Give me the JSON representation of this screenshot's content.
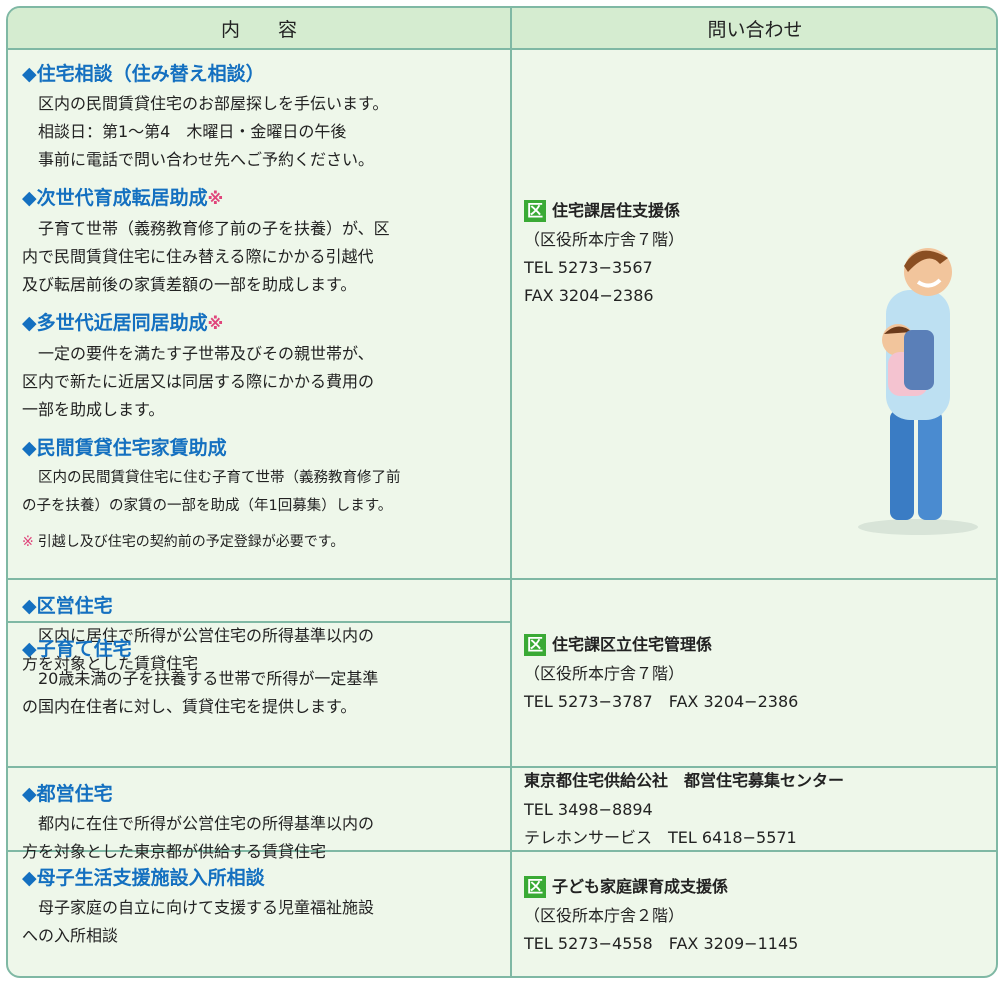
{
  "header": {
    "col1": "内　　容",
    "col2": "問い合わせ"
  },
  "rows": [
    {
      "cells": [
        {
          "items": [
            {
              "title": "◆住宅相談（住み替え相談）",
              "lines": [
                "区内の民間賃貸住宅のお部屋探しを手伝います。",
                "相談日：第1〜第4　木曜日・金曜日の午後",
                "事前に電話で問い合わせ先へご予約ください。"
              ]
            },
            {
              "title": "◆次世代育成転居助成",
              "mark": "※",
              "lines": [
                "子育て世帯（義務教育修了前の子を扶養）が、区",
                "内で民間賃貸住宅に住み替える際にかかる引越代",
                "及び転居前後の家賃差額の一部を助成します。"
              ]
            },
            {
              "title": "◆多世代近居同居助成",
              "mark": "※",
              "lines": [
                "一定の要件を満たす子世帯及びその親世帯が、",
                "区内で新たに近居又は同居する際にかかる費用の",
                "一部を助成します。"
              ]
            },
            {
              "title": "◆民間賃貸住宅家賃助成",
              "lines": [
                "区内の民間賃貸住宅に住む子育て世帯（義務教育修了前",
                "の子を扶養）の家賃の一部を助成（年1回募集）します。"
              ]
            }
          ],
          "note": {
            "mark": "※",
            "text": "引越し及び住宅の契約前の予定登録が必要です。"
          }
        }
      ],
      "contact": {
        "badge": "区",
        "name": "住宅課居住支援係",
        "lines": [
          "（区役所本庁舎７階）",
          "TEL 5273−3567",
          "FAX 3204−2386"
        ]
      }
    },
    {
      "cells": [
        {
          "items": [
            {
              "title": "◆区営住宅",
              "lines": [
                "区内に居住で所得が公営住宅の所得基準以内の",
                "方を対象とした賃貸住宅"
              ]
            }
          ]
        },
        {
          "items": [
            {
              "title": "◆子育て住宅",
              "lines": [
                "20歳未満の子を扶養する世帯で所得が一定基準",
                "の国内在住者に対し、賃貸住宅を提供します。"
              ]
            }
          ]
        }
      ],
      "contact": {
        "badge": "区",
        "name": "住宅課区立住宅管理係",
        "lines": [
          "（区役所本庁舎７階）",
          "TEL 5273−3787　FAX 3204−2386"
        ]
      }
    },
    {
      "cells": [
        {
          "items": [
            {
              "title": "◆都営住宅",
              "lines": [
                "都内に在住で所得が公営住宅の所得基準以内の",
                "方を対象とした東京都が供給する賃貸住宅"
              ]
            }
          ]
        }
      ],
      "contact": {
        "name": "東京都住宅供給公社　都営住宅募集センター",
        "lines": [
          "TEL 3498−8894",
          "テレホンサービス　TEL 6418−5571"
        ]
      }
    },
    {
      "cells": [
        {
          "items": [
            {
              "title": "◆母子生活支援施設入所相談",
              "lines": [
                "母子家庭の自立に向けて支援する児童福祉施設",
                "への入所相談"
              ]
            }
          ]
        }
      ],
      "contact": {
        "badge": "区",
        "name": "子ども家庭課育成支援係",
        "lines": [
          "（区役所本庁舎２階）",
          "TEL 5273−4558　FAX 3209−1145"
        ]
      }
    }
  ]
}
